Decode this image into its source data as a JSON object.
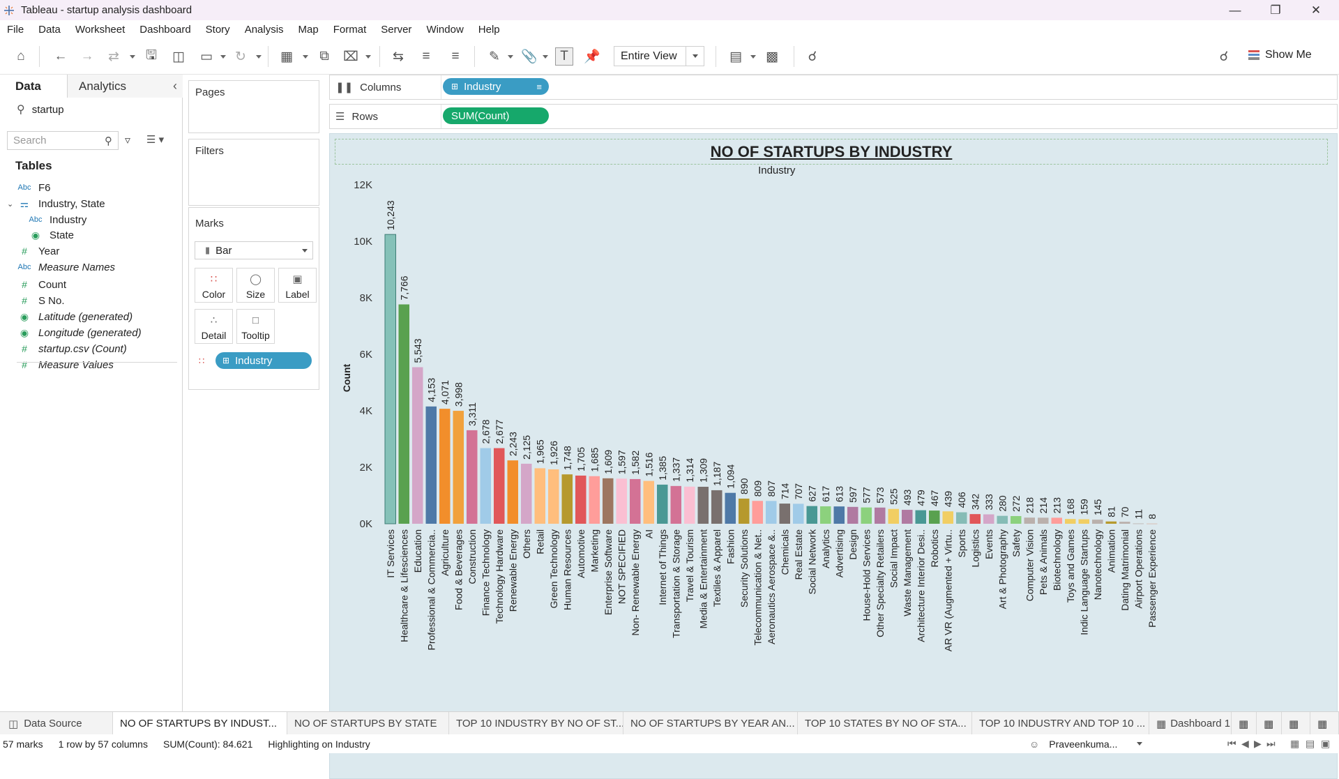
{
  "window": {
    "title": "Tableau - startup analysis dashboard"
  },
  "menu": [
    "File",
    "Data",
    "Worksheet",
    "Dashboard",
    "Story",
    "Analysis",
    "Map",
    "Format",
    "Server",
    "Window",
    "Help"
  ],
  "toolbar": {
    "fit_label": "Entire View",
    "show_me_label": "Show Me"
  },
  "data_pane": {
    "tab_data": "Data",
    "tab_analytics": "Analytics",
    "source": "startup",
    "search_placeholder": "Search",
    "tables_heading": "Tables",
    "fields": [
      {
        "label": "F6",
        "type": "abc",
        "indent": 0,
        "italic": false
      },
      {
        "label": "Industry, State",
        "type": "hier",
        "indent": 0,
        "italic": false
      },
      {
        "label": "Industry",
        "type": "abc",
        "indent": 1,
        "italic": false
      },
      {
        "label": "State",
        "type": "geo",
        "indent": 1,
        "italic": false
      },
      {
        "label": "Year",
        "type": "num",
        "indent": 0,
        "italic": false
      },
      {
        "label": "Measure Names",
        "type": "abc",
        "indent": 0,
        "italic": true
      },
      {
        "label": "Count",
        "type": "num",
        "indent": 0,
        "italic": false
      },
      {
        "label": "S No.",
        "type": "num",
        "indent": 0,
        "italic": false
      },
      {
        "label": "Latitude (generated)",
        "type": "geo",
        "indent": 0,
        "italic": true
      },
      {
        "label": "Longitude (generated)",
        "type": "geo",
        "indent": 0,
        "italic": true
      },
      {
        "label": "startup.csv (Count)",
        "type": "num",
        "indent": 0,
        "italic": true
      },
      {
        "label": "Measure Values",
        "type": "num",
        "indent": 0,
        "italic": true
      }
    ]
  },
  "cards": {
    "pages": "Pages",
    "filters": "Filters",
    "marks": "Marks",
    "mark_type": "Bar",
    "mark_buttons": [
      "Color",
      "Size",
      "Label",
      "Detail",
      "Tooltip"
    ],
    "color_pill": "Industry"
  },
  "shelves": {
    "columns_label": "Columns",
    "columns_pill": "Industry",
    "rows_label": "Rows",
    "rows_pill": "SUM(Count)"
  },
  "chart_data": {
    "type": "bar",
    "title": "NO OF STARTUPS BY INDUSTRY",
    "xlabel": "Industry",
    "ylabel": "Count",
    "ylim": [
      0,
      12000
    ],
    "yticks": [
      "0K",
      "2K",
      "4K",
      "6K",
      "8K",
      "10K",
      "12K"
    ],
    "categories": [
      "IT Services",
      "Healthcare & Lifesciences",
      "Education",
      "Professional & Commercia..",
      "Agriculture",
      "Food & Beverages",
      "Construction",
      "Finance Technology",
      "Technology Hardware",
      "Renewable Energy",
      "Others",
      "Retail",
      "Green Technology",
      "Human Resources",
      "Automotive",
      "Marketing",
      "Enterprise Software",
      "NOT SPECIFIED",
      "Non- Renewable Energy",
      "AI",
      "Internet of Things",
      "Transportation & Storage",
      "Travel & Tourism",
      "Media & Entertainment",
      "Textiles & Apparel",
      "Fashion",
      "Security Solutions",
      "Telecommunication & Net..",
      "Aeronautics Aerospace &..",
      "Chemicals",
      "Real Estate",
      "Social Network",
      "Analytics",
      "Advertising",
      "Design",
      "House-Hold Services",
      "Other Specialty Retailers",
      "Social Impact",
      "Waste Management",
      "Architecture Interior Desi..",
      "Robotics",
      "AR VR (Augmented + Virtu..",
      "Sports",
      "Logistics",
      "Events",
      "Art & Photography",
      "Safety",
      "Computer Vision",
      "Pets & Animals",
      "Biotechnology",
      "Toys and Games",
      "Indic Language Startups",
      "Nanotechnology",
      "Animation",
      "Dating Matrimonial",
      "Airport Operations",
      "Passenger Experience"
    ],
    "values": [
      10243,
      7766,
      5543,
      4153,
      4071,
      3998,
      3311,
      2678,
      2677,
      2243,
      2125,
      1965,
      1926,
      1748,
      1705,
      1685,
      1609,
      1597,
      1582,
      1516,
      1385,
      1337,
      1314,
      1309,
      1187,
      1094,
      890,
      809,
      807,
      714,
      707,
      627,
      617,
      613,
      597,
      577,
      573,
      525,
      493,
      479,
      467,
      439,
      406,
      342,
      333,
      280,
      272,
      218,
      214,
      213,
      168,
      159,
      145,
      81,
      70,
      11,
      8
    ],
    "data_labels": [
      "10,243",
      "7,766",
      "5,543",
      "4,153",
      "4,071",
      "3,998",
      "3,311",
      "2,678",
      "2,677",
      "2,243",
      "2,125",
      "1,965",
      "1,926",
      "1,748",
      "1,705",
      "1,685",
      "1,609",
      "1,597",
      "1,582",
      "1,516",
      "1,385",
      "1,337",
      "1,314",
      "1,309",
      "1,187",
      "1,094",
      "890",
      "809",
      "807",
      "714",
      "707",
      "627",
      "617",
      "613",
      "597",
      "577",
      "573",
      "525",
      "493",
      "479",
      "467",
      "439",
      "406",
      "342",
      "333",
      "280",
      "272",
      "218",
      "214",
      "213",
      "168",
      "159",
      "145",
      "81",
      "70",
      "11",
      "8"
    ],
    "colors": [
      "#85c1b8",
      "#59a14f",
      "#d4a6c8",
      "#4e79a7",
      "#f28e2b",
      "#f1a13c",
      "#d37295",
      "#a0cbe8",
      "#e15759",
      "#f28e2b",
      "#d4a6c8",
      "#ffbe7d",
      "#ffbe7d",
      "#b6992d",
      "#e15759",
      "#ff9d9a",
      "#9d7660",
      "#fabfd2",
      "#d37295",
      "#ffbe7d",
      "#499894",
      "#d37295",
      "#fabfd2",
      "#79706e",
      "#79706e",
      "#4e79a7",
      "#b6992d",
      "#ff9d9a",
      "#a0cbe8",
      "#79706e",
      "#a0cbe8",
      "#499894",
      "#8cd17d",
      "#4e79a7",
      "#b07aa1",
      "#8cd17d",
      "#b07aa1",
      "#f1ce63",
      "#b07aa1",
      "#499894",
      "#59a14f",
      "#f1ce63",
      "#86bcb6",
      "#e15759",
      "#d4a6c8",
      "#86bcb6",
      "#8cd17d",
      "#bab0ac",
      "#bab0ac",
      "#ff9d9a",
      "#f1ce63",
      "#f1ce63",
      "#bab0ac",
      "#b6992d",
      "#bab0ac",
      "#bab0ac",
      "#d7b5a6"
    ]
  },
  "sheet_tabs": [
    "Data Source",
    "NO OF STARTUPS BY INDUST...",
    "NO OF STARTUPS BY STATE",
    "TOP 10 INDUSTRY BY NO OF ST...",
    "NO OF STARTUPS BY YEAR AN...",
    "TOP 10 STATES BY NO OF STA...",
    "TOP 10 INDUSTRY AND TOP 10 ...",
    "Dashboard 1"
  ],
  "status": {
    "marks": "57 marks",
    "dims": "1 row by 57 columns",
    "sum": "SUM(Count): 84.621",
    "highlight": "Highlighting on Industry",
    "user": "Praveenkuma..."
  }
}
